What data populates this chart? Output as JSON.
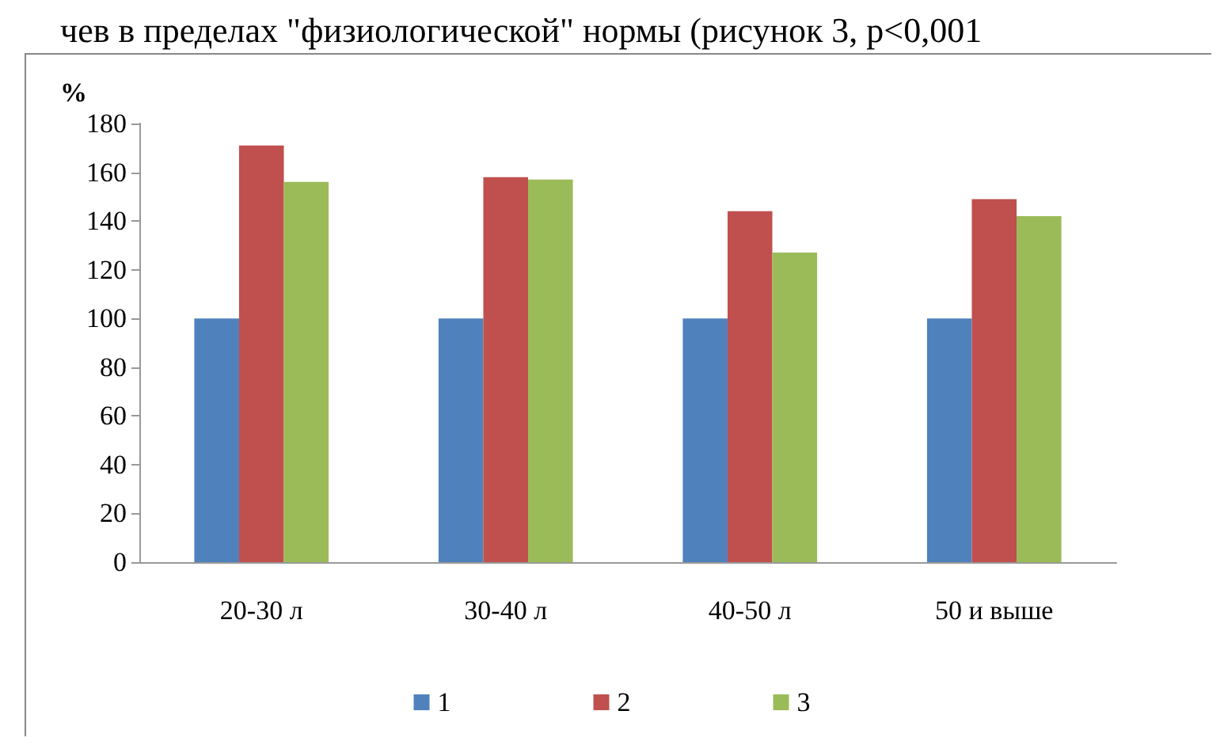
{
  "chart_data": {
    "type": "bar",
    "ylabel": "%",
    "annotations": [
      "чев в пределах \"физиологической\" нормы (рисунок 3, р<0,001"
    ],
    "categories": [
      "20-30 л",
      "30-40 л",
      "40-50 л",
      "50 и выше"
    ],
    "series": [
      {
        "name": "1",
        "color": "#4f81bd",
        "values": [
          100,
          100,
          100,
          100
        ]
      },
      {
        "name": "2",
        "color": "#c0504d",
        "values": [
          171,
          158,
          144,
          149
        ]
      },
      {
        "name": "3",
        "color": "#9bbb59",
        "values": [
          156,
          157,
          127,
          142
        ]
      }
    ],
    "ylim": [
      0,
      180
    ],
    "yticks": [
      0,
      20,
      40,
      60,
      80,
      100,
      120,
      140,
      160,
      180
    ],
    "grid": false,
    "legend": "bottom"
  }
}
